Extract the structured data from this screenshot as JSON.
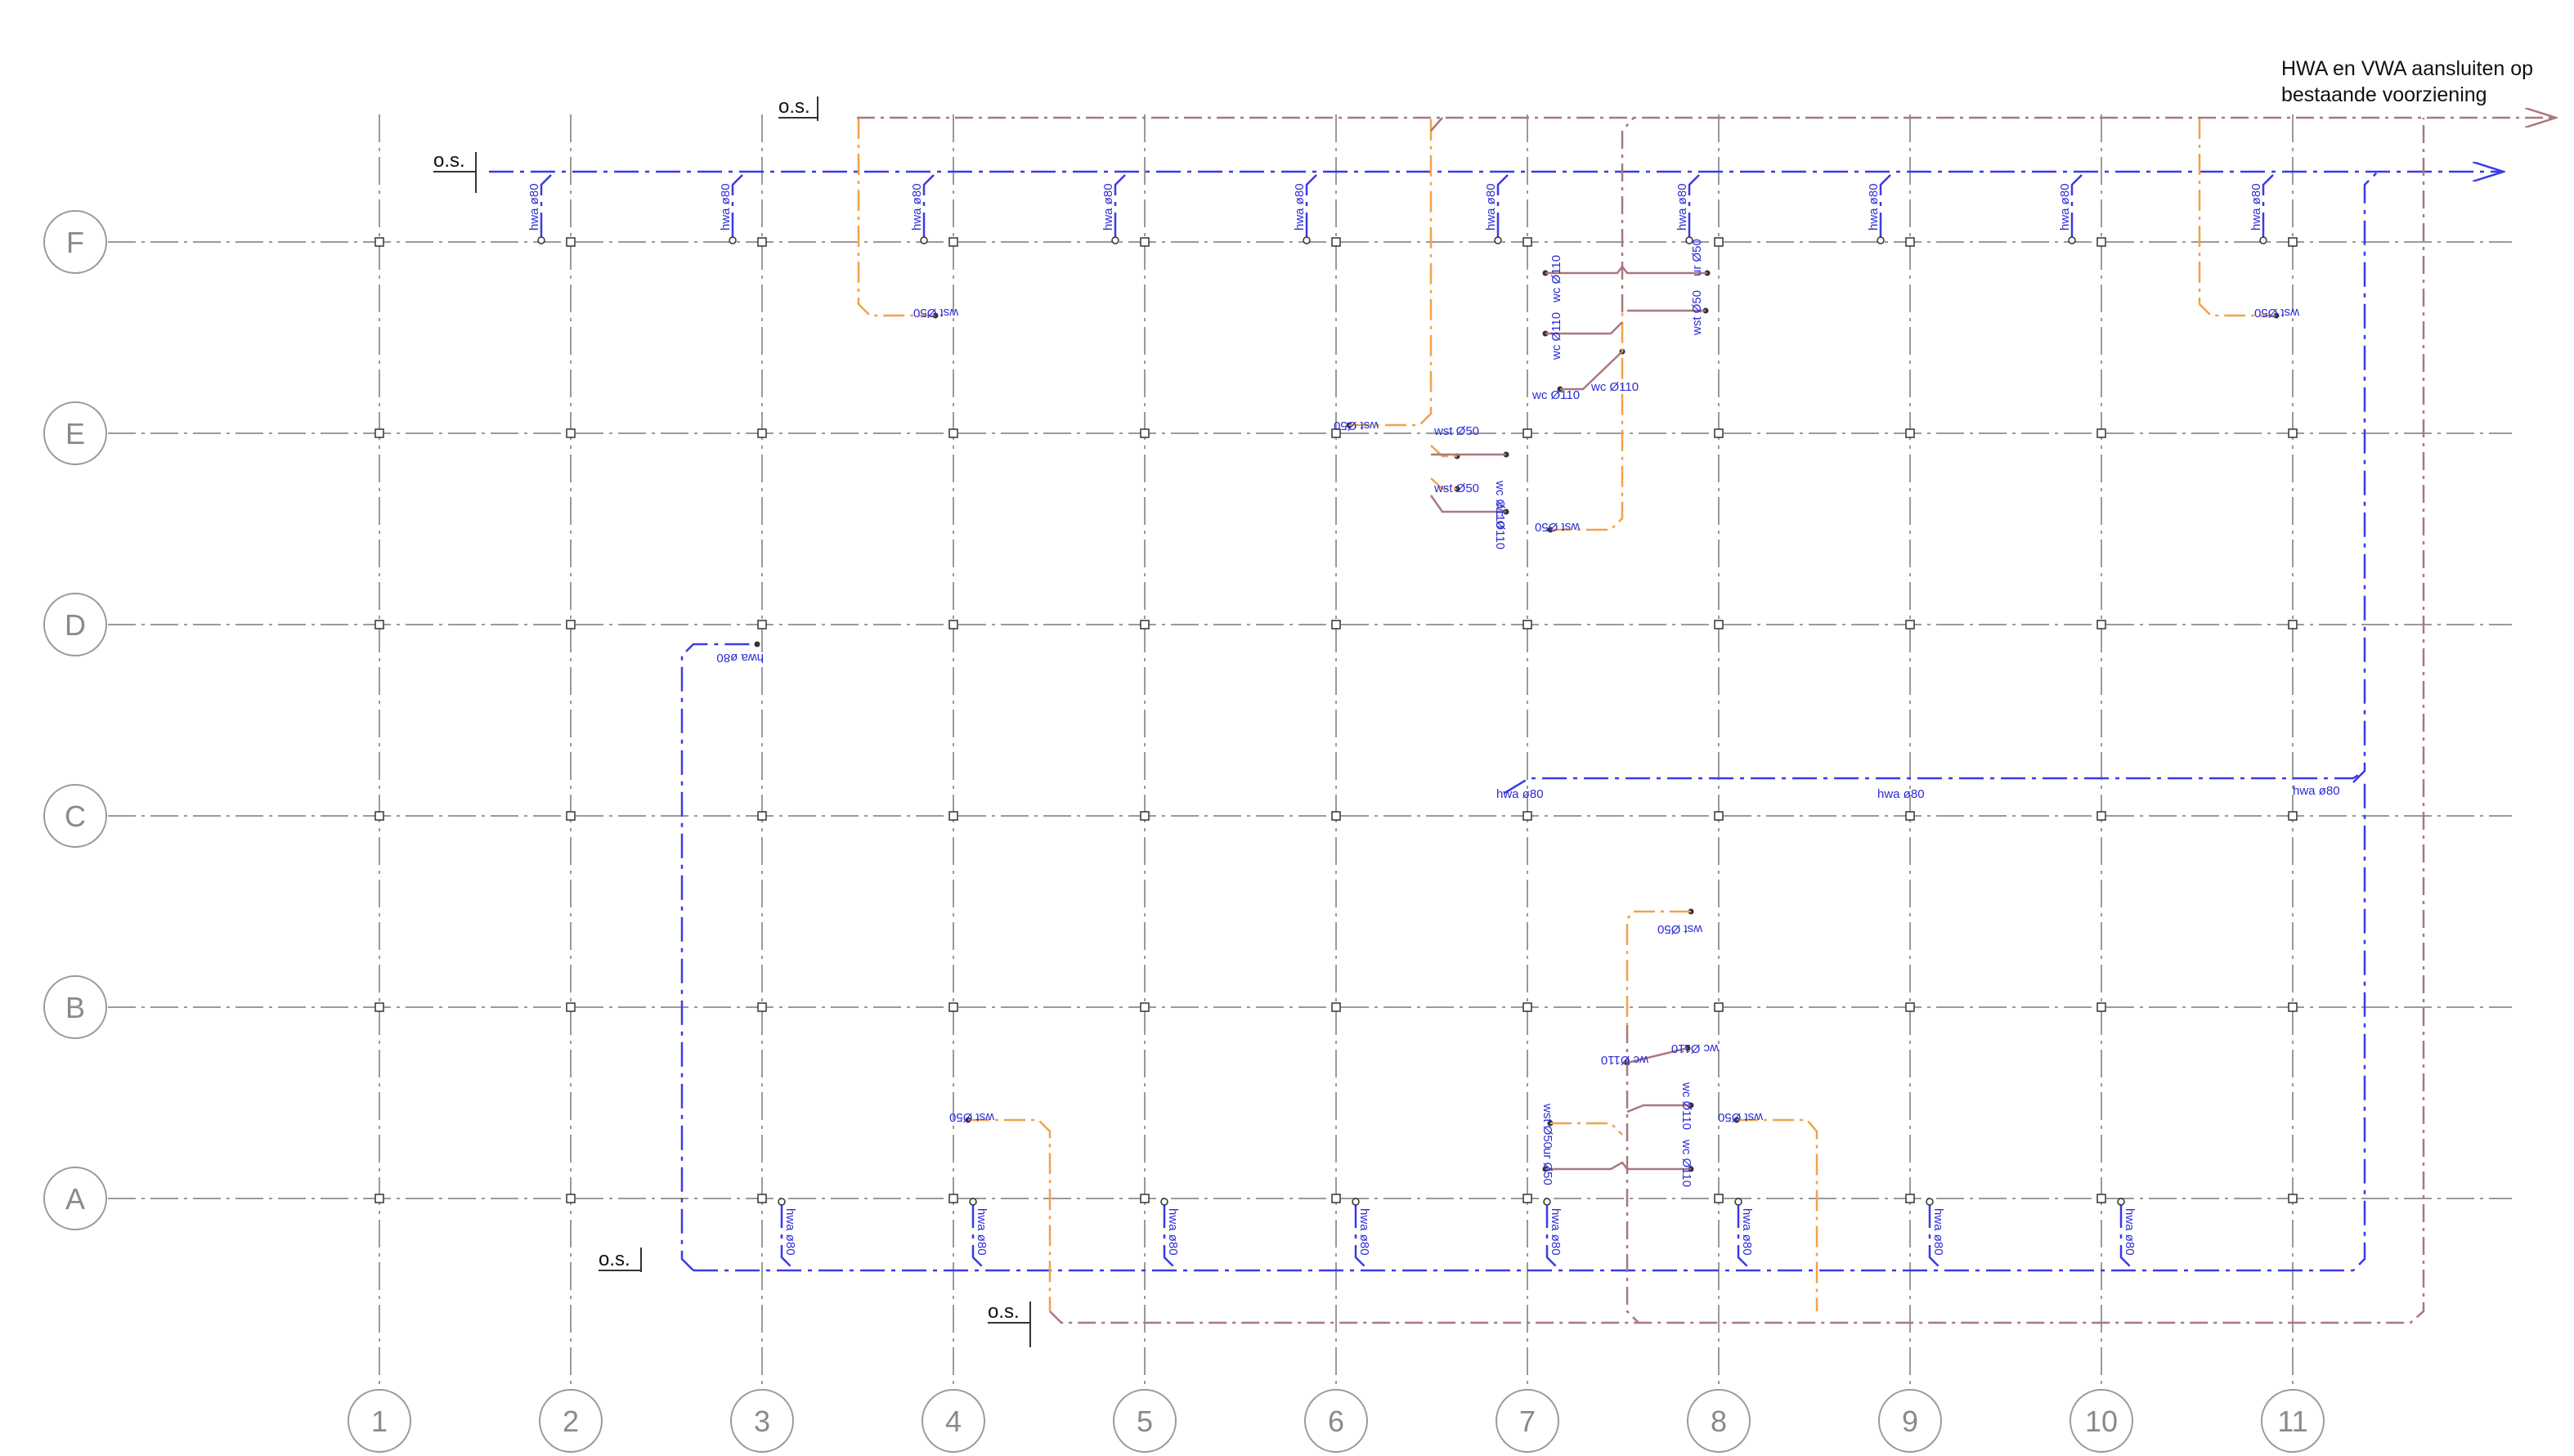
{
  "grid": {
    "rows": [
      "F",
      "E",
      "D",
      "C",
      "B",
      "A"
    ],
    "columns": [
      "1",
      "2",
      "3",
      "4",
      "5",
      "6",
      "7",
      "8",
      "9",
      "10",
      "11"
    ]
  },
  "labels": {
    "os": "o.s.",
    "hwa": "hwa ø80",
    "wst": "wst Ø50",
    "wc": "wc Ø110",
    "ur": "ur Ø50"
  },
  "note": {
    "line1": "HWA en VWA aansluiten op",
    "line2": "bestaande voorziening"
  },
  "colors": {
    "grid": "#9a9a9a",
    "hwa": "#3a3ae6",
    "wst": "#f2a24a",
    "wc": "#a9787d",
    "text": "#2a2ad6"
  }
}
